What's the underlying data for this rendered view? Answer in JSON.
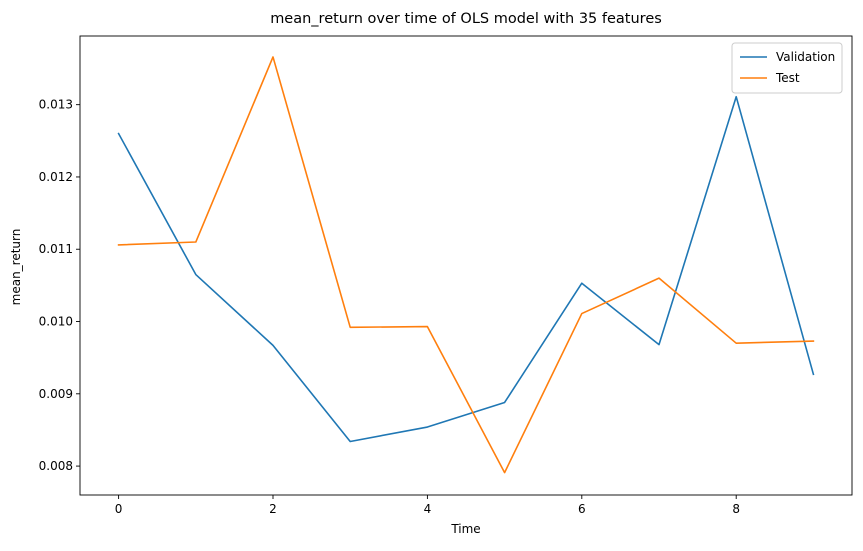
{
  "chart_data": {
    "type": "line",
    "title": "mean_return over time of OLS model with 35 features",
    "xlabel": "Time",
    "ylabel": "mean_return",
    "x": [
      0,
      1,
      2,
      3,
      4,
      5,
      6,
      7,
      8,
      9
    ],
    "xlim": [
      -0.5,
      9.5
    ],
    "ylim": [
      0.0076,
      0.01395
    ],
    "xticks": [
      "0",
      "2",
      "4",
      "6",
      "8"
    ],
    "yticks": [
      "0.008",
      "0.009",
      "0.010",
      "0.011",
      "0.012",
      "0.013"
    ],
    "grid": false,
    "legend_position": "top-right",
    "series": [
      {
        "name": "Validation",
        "color": "#1f77b4",
        "values": [
          0.0126,
          0.01065,
          0.00967,
          0.00834,
          0.00854,
          0.00888,
          0.01053,
          0.00968,
          0.01311,
          0.00927
        ]
      },
      {
        "name": "Test",
        "color": "#ff7f0e",
        "values": [
          0.01106,
          0.0111,
          0.01366,
          0.00992,
          0.00993,
          0.00791,
          0.01011,
          0.0106,
          0.0097,
          0.00973
        ]
      }
    ]
  }
}
